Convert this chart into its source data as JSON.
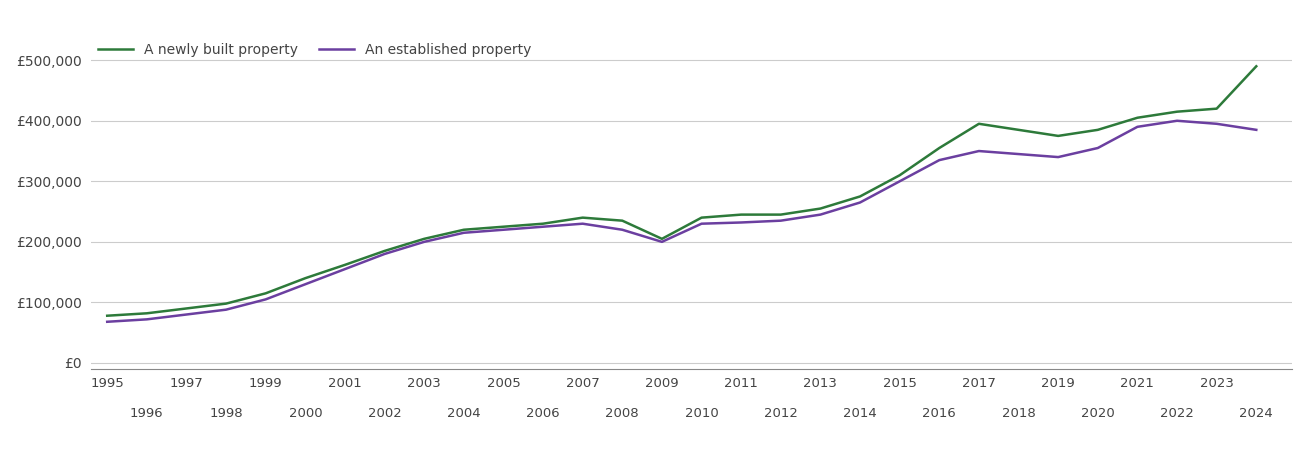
{
  "new_property": {
    "years": [
      1995,
      1996,
      1997,
      1998,
      1999,
      2000,
      2001,
      2002,
      2003,
      2004,
      2005,
      2006,
      2007,
      2008,
      2009,
      2010,
      2011,
      2012,
      2013,
      2014,
      2015,
      2016,
      2017,
      2018,
      2019,
      2020,
      2021,
      2022,
      2023,
      2024
    ],
    "values": [
      78000,
      82000,
      90000,
      98000,
      115000,
      140000,
      162000,
      185000,
      205000,
      220000,
      225000,
      230000,
      240000,
      235000,
      205000,
      240000,
      245000,
      245000,
      255000,
      275000,
      310000,
      355000,
      395000,
      385000,
      375000,
      385000,
      405000,
      415000,
      420000,
      490000
    ]
  },
  "established_property": {
    "years": [
      1995,
      1996,
      1997,
      1998,
      1999,
      2000,
      2001,
      2002,
      2003,
      2004,
      2005,
      2006,
      2007,
      2008,
      2009,
      2010,
      2011,
      2012,
      2013,
      2014,
      2015,
      2016,
      2017,
      2018,
      2019,
      2020,
      2021,
      2022,
      2023,
      2024
    ],
    "values": [
      68000,
      72000,
      80000,
      88000,
      105000,
      130000,
      155000,
      180000,
      200000,
      215000,
      220000,
      225000,
      230000,
      220000,
      200000,
      230000,
      232000,
      235000,
      245000,
      265000,
      300000,
      335000,
      350000,
      345000,
      340000,
      355000,
      390000,
      400000,
      395000,
      385000
    ]
  },
  "new_color": "#2d7a3a",
  "established_color": "#6b3fa0",
  "legend_labels": [
    "A newly built property",
    "An established property"
  ],
  "yticks": [
    0,
    100000,
    200000,
    300000,
    400000,
    500000
  ],
  "ytick_labels": [
    "£0",
    "£100,000",
    "£200,000",
    "£300,000",
    "£400,000",
    "£500,000"
  ],
  "background_color": "#ffffff",
  "grid_color": "#cccccc",
  "line_width": 1.8,
  "odd_years": [
    1995,
    1997,
    1999,
    2001,
    2003,
    2005,
    2007,
    2009,
    2011,
    2013,
    2015,
    2017,
    2019,
    2021,
    2023
  ],
  "even_years": [
    1996,
    1998,
    2000,
    2002,
    2004,
    2006,
    2008,
    2010,
    2012,
    2014,
    2016,
    2018,
    2020,
    2022,
    2024
  ]
}
